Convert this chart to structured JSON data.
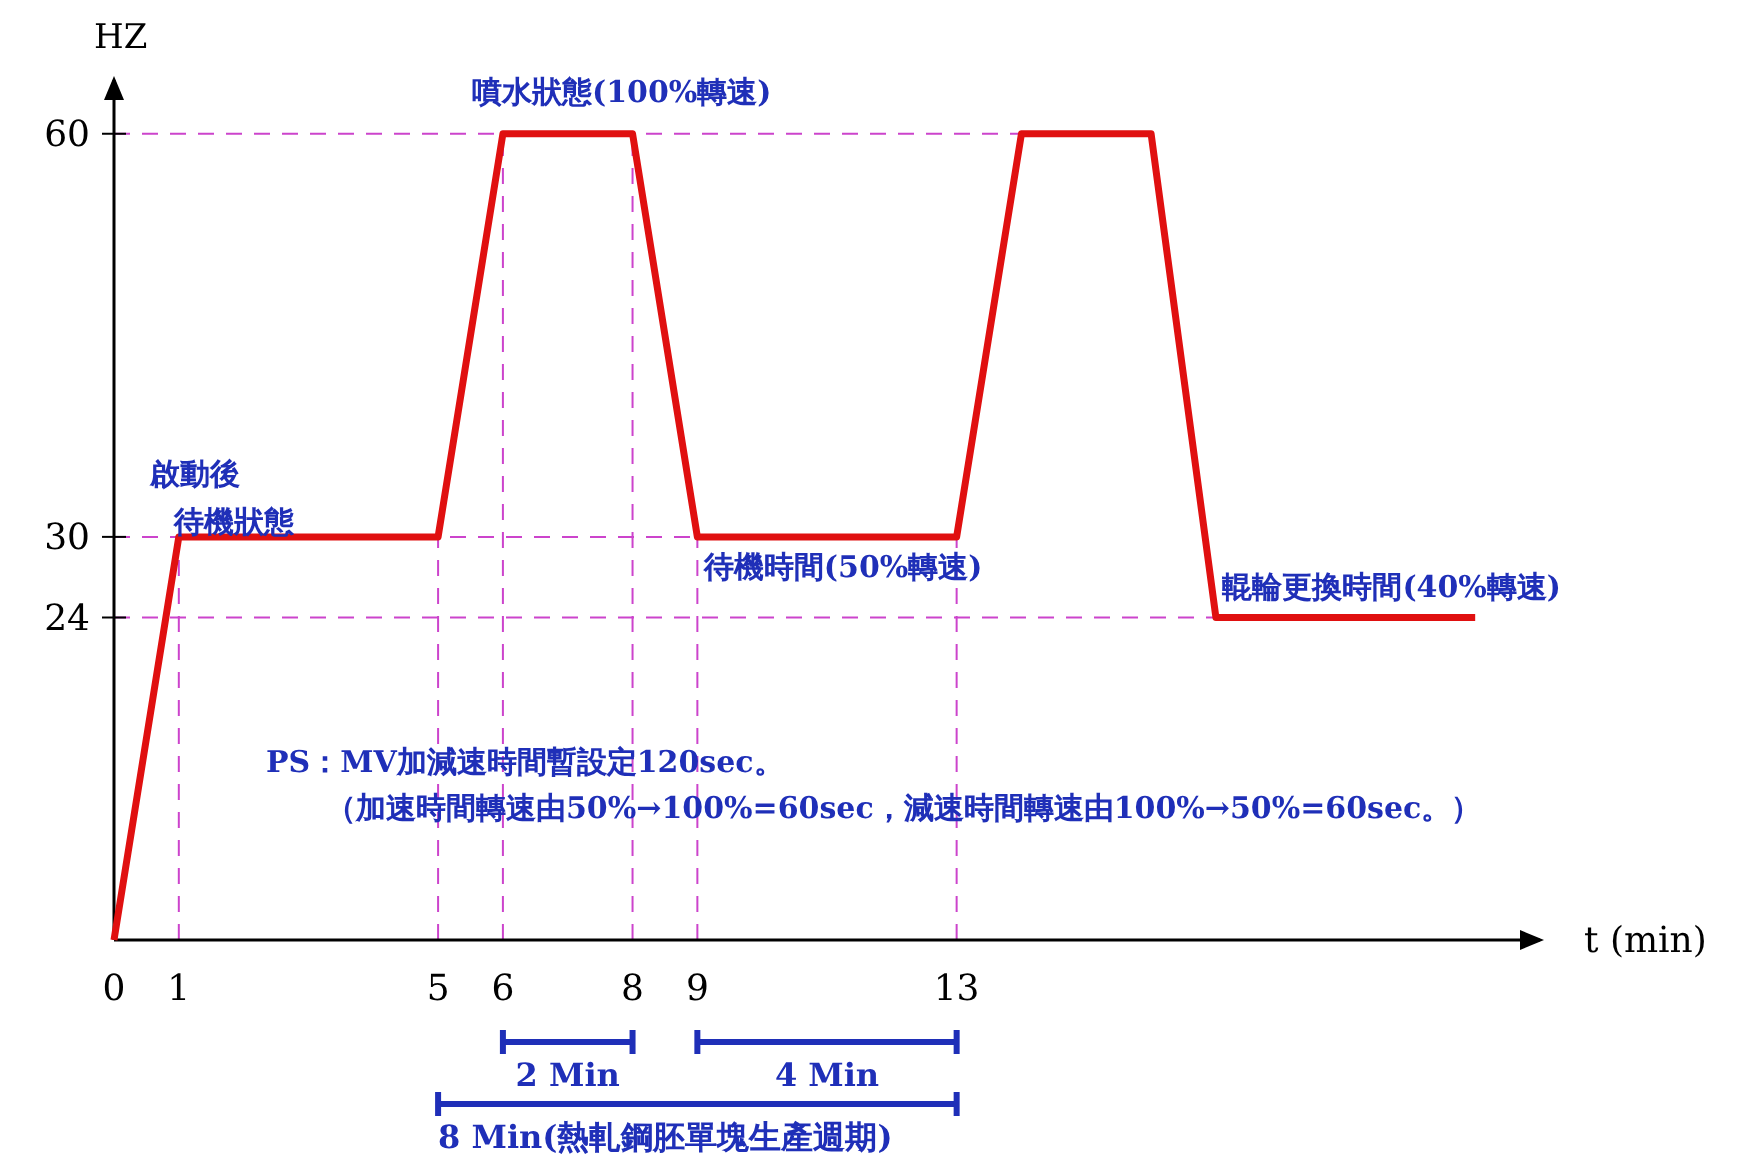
{
  "chart_data": {
    "type": "line",
    "xlabel": "t (min)",
    "ylabel": "HZ",
    "x": [
      0,
      1,
      5,
      6,
      8,
      9,
      13,
      14,
      16,
      17,
      21
    ],
    "series": [
      {
        "color": "#e01010",
        "values": [
          0,
          30,
          30,
          60,
          60,
          30,
          30,
          60,
          60,
          24,
          24
        ]
      }
    ],
    "xlim": [
      0,
      22
    ],
    "ylim": [
      0,
      64
    ],
    "xticks": [
      0,
      1,
      5,
      6,
      8,
      9,
      13
    ],
    "yticks": [
      24,
      30,
      60
    ],
    "ref_lines": [
      {
        "axis": "y",
        "value": 60,
        "color": "#cc44cc",
        "line_style": "dashed"
      },
      {
        "axis": "y",
        "value": 30,
        "color": "#cc44cc",
        "line_style": "dashed"
      },
      {
        "axis": "y",
        "value": 24,
        "color": "#cc44cc",
        "line_style": "dashed"
      },
      {
        "axis": "x",
        "value": 1,
        "color": "#cc44cc",
        "line_style": "dashed"
      },
      {
        "axis": "x",
        "value": 5,
        "color": "#cc44cc",
        "line_style": "dashed"
      },
      {
        "axis": "x",
        "value": 6,
        "color": "#cc44cc",
        "line_style": "dashed"
      },
      {
        "axis": "x",
        "value": 8,
        "color": "#cc44cc",
        "line_style": "dashed"
      },
      {
        "axis": "x",
        "value": 9,
        "color": "#cc44cc",
        "line_style": "dashed"
      },
      {
        "axis": "x",
        "value": 13,
        "color": "#cc44cc",
        "line_style": "dashed"
      }
    ],
    "annotations": [
      "啟動後",
      "待機狀態",
      "噴水狀態(100%轉速)",
      {
        "text": "待機時間(50%轉速)",
        "x": 9.1,
        "y": 27
      },
      {
        "text": "輥輪更換時間(40%轉速)",
        "x": 17.1,
        "y": 25.5
      },
      "PS：MV加減速時間暫設定120sec。",
      "（加速時間轉速由50%→100%=60sec，減速時間轉速由100%→50%=60sec。）",
      "2 Min",
      "4 Min",
      "8 Min(熱軋鋼胚單塊生產週期)"
    ],
    "grid": false,
    "marker": "none",
    "line_style": "solid"
  }
}
